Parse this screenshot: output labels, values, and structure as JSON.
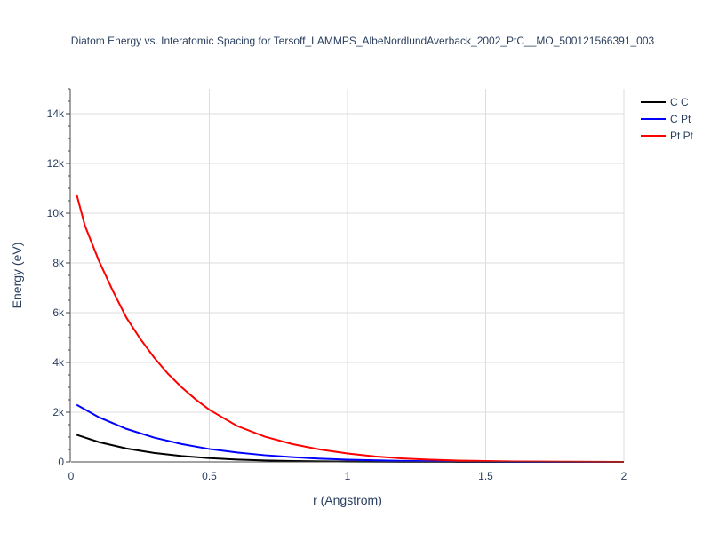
{
  "chart_data": {
    "type": "line",
    "title": "Diatom Energy vs. Interatomic Spacing for Tersoff_LAMMPS_AlbeNordlundAverback_2002_PtC__MO_500121566391_003",
    "xlabel": "r (Angstrom)",
    "ylabel": "Energy (eV)",
    "xlim": [
      0,
      2
    ],
    "ylim": [
      0,
      15000
    ],
    "x_ticks": [
      0,
      0.5,
      1,
      1.5,
      2
    ],
    "x_tick_labels": [
      "0",
      "0.5",
      "1",
      "1.5",
      "2"
    ],
    "y_ticks": [
      0,
      2000,
      4000,
      6000,
      8000,
      10000,
      12000,
      14000
    ],
    "y_tick_labels": [
      "0",
      "2k",
      "4k",
      "6k",
      "8k",
      "10k",
      "12k",
      "14k"
    ],
    "grid": true,
    "legend_position": "top-right",
    "series": [
      {
        "name": "C C",
        "color": "#000000",
        "x": [
          0.02,
          0.1,
          0.2,
          0.3,
          0.4,
          0.5,
          0.6,
          0.7,
          0.8,
          0.9,
          1.0,
          1.2,
          1.4,
          1.6,
          1.8,
          2.0
        ],
        "y": [
          1090,
          800,
          540,
          360,
          235,
          150,
          95,
          60,
          38,
          24,
          15,
          6,
          2,
          1,
          0,
          0
        ]
      },
      {
        "name": "C Pt",
        "color": "#0000ff",
        "x": [
          0.02,
          0.1,
          0.2,
          0.3,
          0.4,
          0.5,
          0.6,
          0.7,
          0.8,
          0.9,
          1.0,
          1.2,
          1.4,
          1.6,
          1.8,
          2.0
        ],
        "y": [
          2300,
          1800,
          1330,
          980,
          720,
          520,
          380,
          270,
          190,
          130,
          90,
          40,
          15,
          5,
          1,
          0
        ]
      },
      {
        "name": "Pt Pt",
        "color": "#ff0000",
        "x": [
          0.02,
          0.05,
          0.1,
          0.15,
          0.2,
          0.25,
          0.3,
          0.35,
          0.4,
          0.45,
          0.5,
          0.6,
          0.7,
          0.8,
          0.9,
          1.0,
          1.1,
          1.2,
          1.3,
          1.4,
          1.5,
          1.6,
          1.7,
          1.8,
          1.9,
          2.0
        ],
        "y": [
          10750,
          9500,
          8100,
          6900,
          5800,
          4950,
          4200,
          3550,
          3000,
          2520,
          2100,
          1450,
          1020,
          720,
          500,
          340,
          220,
          140,
          90,
          55,
          35,
          20,
          12,
          7,
          4,
          2
        ]
      }
    ]
  }
}
